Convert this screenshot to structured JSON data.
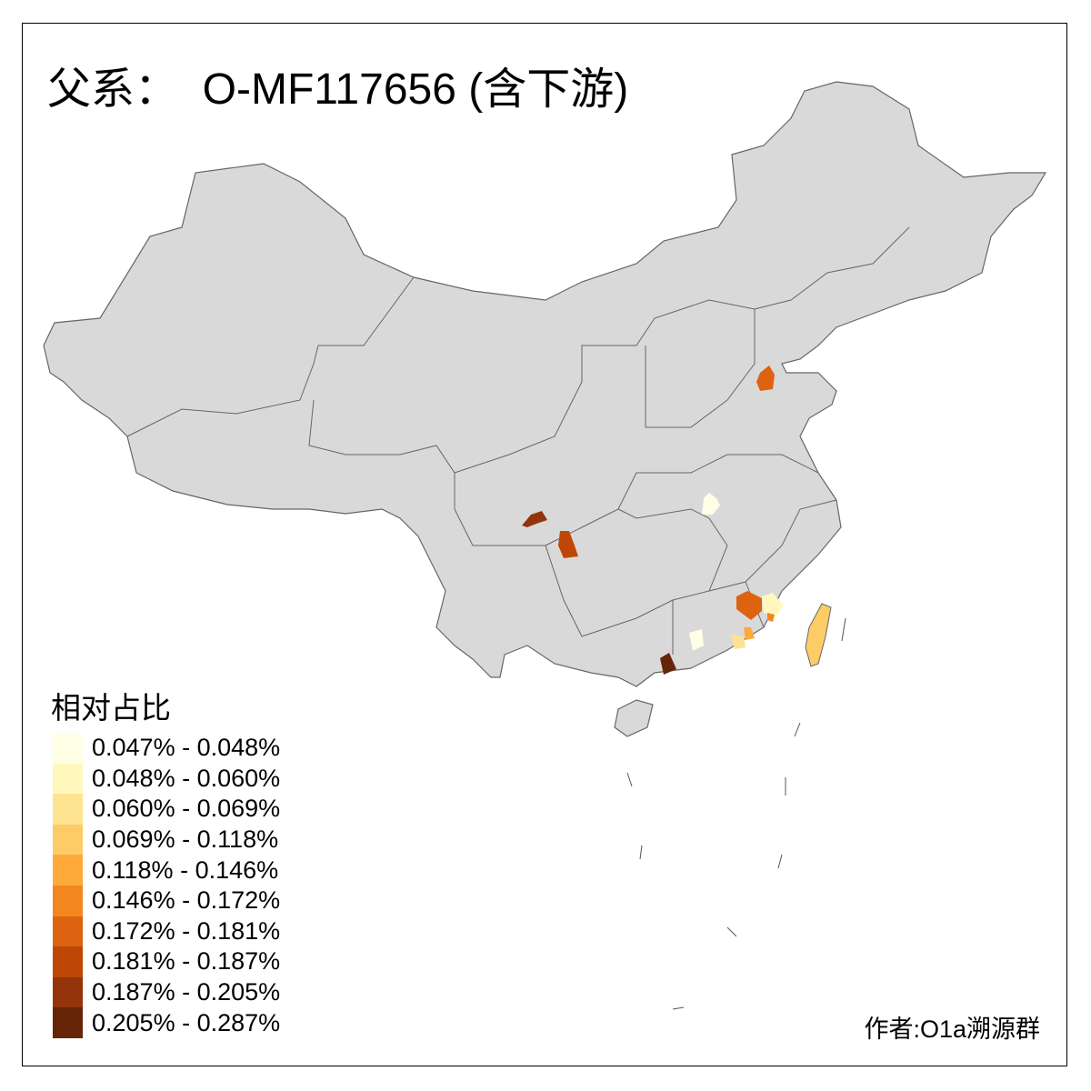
{
  "title": "父系：  O-MF117656 (含下游)",
  "legend": {
    "title": "相对占比",
    "items": [
      {
        "label": "0.047% - 0.048%",
        "color": "#FFFFE5"
      },
      {
        "label": "0.048% - 0.060%",
        "color": "#FFF7BC"
      },
      {
        "label": "0.060% - 0.069%",
        "color": "#FEE391"
      },
      {
        "label": "0.069% - 0.118%",
        "color": "#FECC66"
      },
      {
        "label": "0.118% - 0.146%",
        "color": "#FDAA3A"
      },
      {
        "label": "0.146% - 0.172%",
        "color": "#F3861F"
      },
      {
        "label": "0.172% - 0.181%",
        "color": "#DD6310"
      },
      {
        "label": "0.181% - 0.187%",
        "color": "#BF4706"
      },
      {
        "label": "0.187% - 0.205%",
        "color": "#93340A"
      },
      {
        "label": "0.205% - 0.287%",
        "color": "#662506"
      }
    ]
  },
  "map": {
    "base_color": "#D9D9D9",
    "border_color": "#666666"
  },
  "author": "作者:O1a溯源群"
}
